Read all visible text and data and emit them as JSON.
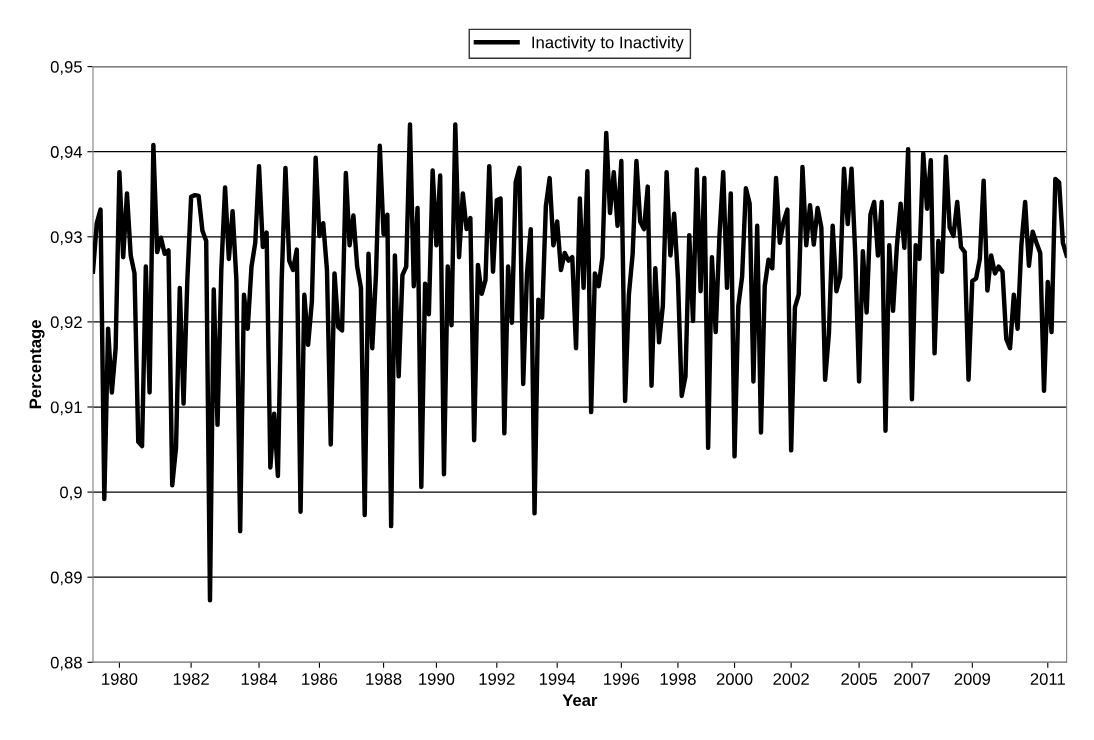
{
  "chart_data": {
    "type": "line",
    "xlabel": "Year",
    "ylabel": "Percentage",
    "legend": "top",
    "grid": "y",
    "marker": "none",
    "line_style": "solid",
    "ylim": [
      0.88,
      0.95
    ],
    "categories": [
      null,
      null,
      null,
      null,
      null,
      null,
      null,
      "1980",
      null,
      null,
      null,
      null,
      null,
      null,
      null,
      null,
      null,
      null,
      null,
      null,
      null,
      null,
      null,
      null,
      null,
      null,
      "1982",
      null,
      null,
      null,
      null,
      null,
      null,
      null,
      null,
      null,
      null,
      null,
      null,
      null,
      null,
      null,
      null,
      null,
      "1984",
      null,
      null,
      null,
      null,
      null,
      null,
      null,
      null,
      null,
      null,
      null,
      null,
      null,
      null,
      null,
      "1986",
      null,
      null,
      null,
      null,
      null,
      null,
      null,
      null,
      null,
      null,
      null,
      null,
      null,
      null,
      null,
      null,
      "1988",
      null,
      null,
      null,
      null,
      null,
      null,
      null,
      null,
      null,
      null,
      null,
      null,
      null,
      "1990",
      null,
      null,
      null,
      null,
      null,
      null,
      null,
      null,
      null,
      null,
      null,
      null,
      null,
      null,
      null,
      "1992",
      null,
      null,
      null,
      null,
      null,
      null,
      null,
      null,
      null,
      null,
      null,
      null,
      null,
      null,
      null,
      "1994",
      null,
      null,
      null,
      null,
      null,
      null,
      null,
      null,
      null,
      null,
      null,
      null,
      null,
      null,
      null,
      null,
      "1996",
      null,
      null,
      null,
      null,
      null,
      null,
      null,
      null,
      null,
      null,
      null,
      null,
      null,
      null,
      "1998",
      null,
      null,
      null,
      null,
      null,
      null,
      null,
      null,
      null,
      null,
      null,
      null,
      null,
      null,
      "2000",
      null,
      null,
      null,
      null,
      null,
      null,
      null,
      null,
      null,
      null,
      null,
      null,
      null,
      null,
      "2002",
      null,
      null,
      null,
      null,
      null,
      null,
      null,
      null,
      null,
      null,
      null,
      null,
      null,
      null,
      null,
      null,
      null,
      "2005",
      null,
      null,
      null,
      null,
      null,
      null,
      null,
      null,
      null,
      null,
      null,
      null,
      null,
      "2007",
      null,
      null,
      null,
      null,
      null,
      null,
      null,
      null,
      null,
      null,
      null,
      null,
      null,
      null,
      null,
      "2009",
      null,
      null,
      null,
      null,
      null,
      null,
      null,
      null,
      null,
      null,
      null,
      null,
      null,
      null,
      null,
      null,
      null,
      null,
      null,
      "2011",
      null,
      null,
      null,
      null,
      null
    ],
    "yticks": [
      {
        "value": 0.88,
        "label": "0,88"
      },
      {
        "value": 0.89,
        "label": "0,89"
      },
      {
        "value": 0.9,
        "label": "0,9"
      },
      {
        "value": 0.91,
        "label": "0,91"
      },
      {
        "value": 0.92,
        "label": "0,92"
      },
      {
        "value": 0.93,
        "label": "0,93"
      },
      {
        "value": 0.94,
        "label": "0,94"
      },
      {
        "value": 0.95,
        "label": "0,95"
      }
    ],
    "series": [
      {
        "name": "Inactivity to Inactivity",
        "color": "#000000",
        "values": [
          0.9259,
          0.9316,
          0.9332,
          0.8992,
          0.9192,
          0.9117,
          0.9169,
          0.9376,
          0.9276,
          0.9351,
          0.9278,
          0.9257,
          0.9059,
          0.9054,
          0.9265,
          0.9117,
          0.9408,
          0.9282,
          0.9299,
          0.928,
          0.9284,
          0.9008,
          0.9052,
          0.924,
          0.9104,
          0.9249,
          0.9347,
          0.9349,
          0.9348,
          0.9307,
          0.9295,
          0.8873,
          0.9238,
          0.9079,
          0.9261,
          0.9358,
          0.9274,
          0.933,
          0.9249,
          0.8954,
          0.9232,
          0.9192,
          0.9265,
          0.9293,
          0.9383,
          0.9288,
          0.9305,
          0.9029,
          0.9092,
          0.9019,
          0.9249,
          0.9381,
          0.9272,
          0.9261,
          0.9285,
          0.8977,
          0.9232,
          0.9173,
          0.9224,
          0.9393,
          0.9301,
          0.9316,
          0.9261,
          0.9056,
          0.9257,
          0.9194,
          0.919,
          0.9375,
          0.929,
          0.9325,
          0.9265,
          0.924,
          0.8973,
          0.928,
          0.9169,
          0.9257,
          0.9407,
          0.9303,
          0.9326,
          0.896,
          0.9278,
          0.9136,
          0.9255,
          0.9265,
          0.9432,
          0.9242,
          0.9334,
          0.9006,
          0.9245,
          0.9209,
          0.9378,
          0.929,
          0.9372,
          0.9021,
          0.9265,
          0.9196,
          0.9432,
          0.9276,
          0.9351,
          0.9309,
          0.9322,
          0.9061,
          0.9267,
          0.9233,
          0.9249,
          0.9383,
          0.9259,
          0.9343,
          0.9345,
          0.9069,
          0.9265,
          0.9199,
          0.9364,
          0.9381,
          0.9127,
          0.9257,
          0.9309,
          0.8975,
          0.9226,
          0.9205,
          0.9336,
          0.9369,
          0.929,
          0.9318,
          0.9261,
          0.9281,
          0.9272,
          0.9276,
          0.9169,
          0.9345,
          0.924,
          0.9377,
          0.9094,
          0.9257,
          0.9242,
          0.9276,
          0.9422,
          0.9328,
          0.9376,
          0.9313,
          0.9389,
          0.9107,
          0.9232,
          0.928,
          0.9389,
          0.9318,
          0.9309,
          0.9359,
          0.9125,
          0.9263,
          0.9176,
          0.9219,
          0.9376,
          0.9278,
          0.9327,
          0.9251,
          0.9113,
          0.9136,
          0.9302,
          0.9201,
          0.9379,
          0.9236,
          0.9369,
          0.9052,
          0.9276,
          0.9188,
          0.9301,
          0.9376,
          0.924,
          0.9351,
          0.9042,
          0.9219,
          0.9253,
          0.9357,
          0.9339,
          0.913,
          0.9313,
          0.907,
          0.9242,
          0.9273,
          0.9263,
          0.9369,
          0.9293,
          0.9318,
          0.9332,
          0.9049,
          0.9217,
          0.9232,
          0.9382,
          0.929,
          0.9337,
          0.9291,
          0.9334,
          0.9311,
          0.9132,
          0.9186,
          0.9313,
          0.9236,
          0.9253,
          0.938,
          0.9315,
          0.938,
          0.9278,
          0.913,
          0.9283,
          0.9211,
          0.9326,
          0.9341,
          0.9278,
          0.9341,
          0.9072,
          0.929,
          0.9213,
          0.9288,
          0.9339,
          0.9287,
          0.9403,
          0.9109,
          0.929,
          0.9274,
          0.9398,
          0.9333,
          0.939,
          0.9163,
          0.9295,
          0.9259,
          0.9394,
          0.9311,
          0.9301,
          0.9341,
          0.9288,
          0.9282,
          0.9132,
          0.9248,
          0.9251,
          0.9274,
          0.9366,
          0.9237,
          0.9278,
          0.9257,
          0.9265,
          0.9259,
          0.918,
          0.9169,
          0.9232,
          0.9192,
          0.929,
          0.9341,
          0.9266,
          0.9306,
          0.9293,
          0.9281,
          0.9119,
          0.9247,
          0.9188,
          0.9368,
          0.9364,
          0.9293,
          0.9278
        ]
      }
    ]
  }
}
